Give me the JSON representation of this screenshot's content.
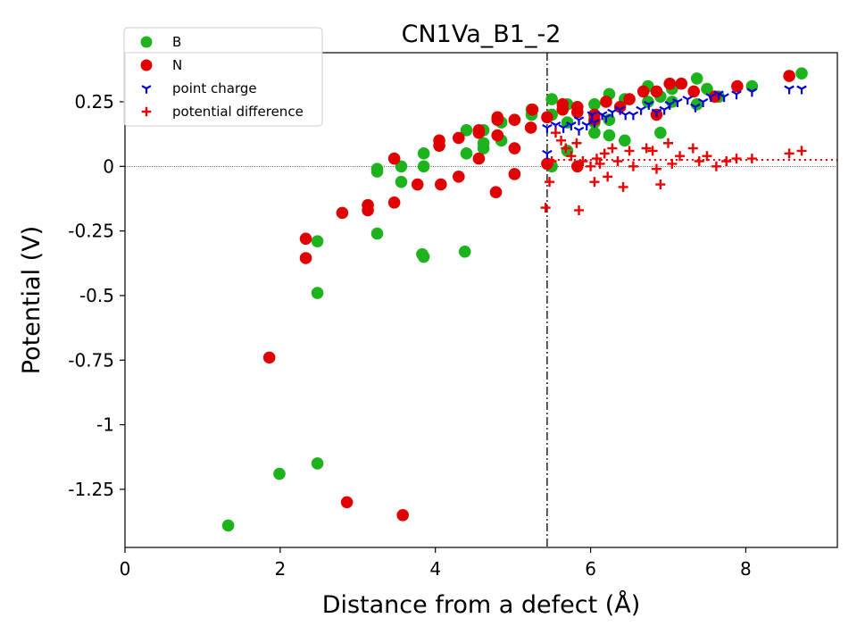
{
  "chart_data": {
    "type": "scatter",
    "title": "CN1Va_B1_-2",
    "xlabel": "Distance from a defect (Å)",
    "ylabel": "Potential (V)",
    "xlim": [
      0,
      9.18
    ],
    "ylim": [
      -1.475,
      0.44
    ],
    "x_ticks": [
      0,
      2,
      4,
      6,
      8
    ],
    "x_tick_labels": [
      "0",
      "2",
      "4",
      "6",
      "8"
    ],
    "y_ticks": [
      0.25,
      0,
      -0.25,
      -0.5,
      -0.75,
      -1,
      -1.25
    ],
    "y_tick_labels": [
      "0.25",
      "0",
      "-0.25",
      "-0.5",
      "-0.75",
      "-1",
      "-1.25"
    ],
    "grid": false,
    "legend_position": "top-left",
    "reference_lines": {
      "zero_line": 0,
      "vertical_line_x": 5.44,
      "average_line_y": 0.025,
      "average_line_x_from": 5.44
    },
    "series": [
      {
        "name": "B",
        "marker": "circle",
        "color": "#1db31d",
        "points": [
          [
            1.33,
            -1.39
          ],
          [
            1.99,
            -1.19
          ],
          [
            2.48,
            -1.15
          ],
          [
            2.48,
            -0.49
          ],
          [
            2.48,
            -0.29
          ],
          [
            3.25,
            -0.26
          ],
          [
            3.25,
            -0.02
          ],
          [
            3.25,
            -0.01
          ],
          [
            3.56,
            -0.06
          ],
          [
            3.56,
            0.0
          ],
          [
            3.83,
            -0.34
          ],
          [
            3.85,
            -0.35
          ],
          [
            3.85,
            0.0
          ],
          [
            3.85,
            0.05
          ],
          [
            4.38,
            -0.33
          ],
          [
            4.4,
            0.05
          ],
          [
            4.4,
            0.14
          ],
          [
            4.62,
            0.07
          ],
          [
            4.62,
            0.09
          ],
          [
            4.62,
            0.14
          ],
          [
            4.85,
            0.1
          ],
          [
            4.85,
            0.17
          ],
          [
            5.24,
            0.2
          ],
          [
            5.24,
            0.22
          ],
          [
            5.5,
            0.26
          ],
          [
            5.5,
            0.2
          ],
          [
            5.5,
            0.0
          ],
          [
            5.7,
            0.06
          ],
          [
            5.7,
            0.17
          ],
          [
            5.7,
            0.24
          ],
          [
            6.05,
            0.13
          ],
          [
            6.05,
            0.17
          ],
          [
            6.05,
            0.24
          ],
          [
            6.24,
            0.12
          ],
          [
            6.24,
            0.18
          ],
          [
            6.24,
            0.28
          ],
          [
            6.44,
            0.1
          ],
          [
            6.44,
            0.26
          ],
          [
            6.74,
            0.25
          ],
          [
            6.74,
            0.31
          ],
          [
            6.9,
            0.13
          ],
          [
            6.9,
            0.27
          ],
          [
            7.05,
            0.25
          ],
          [
            7.05,
            0.3
          ],
          [
            7.37,
            0.24
          ],
          [
            7.37,
            0.34
          ],
          [
            7.5,
            0.3
          ],
          [
            7.65,
            0.27
          ],
          [
            8.08,
            0.31
          ],
          [
            8.72,
            0.36
          ]
        ]
      },
      {
        "name": "N",
        "marker": "circle",
        "color": "#e00000",
        "points": [
          [
            1.86,
            -0.74
          ],
          [
            2.33,
            -0.28
          ],
          [
            2.33,
            -0.355
          ],
          [
            2.8,
            -0.18
          ],
          [
            2.86,
            -1.3
          ],
          [
            3.13,
            -0.15
          ],
          [
            3.13,
            -0.17
          ],
          [
            3.47,
            0.03
          ],
          [
            3.47,
            -0.14
          ],
          [
            3.58,
            -1.35
          ],
          [
            3.77,
            -0.07
          ],
          [
            4.05,
            0.1
          ],
          [
            4.05,
            0.08
          ],
          [
            4.07,
            -0.07
          ],
          [
            4.3,
            -0.04
          ],
          [
            4.3,
            0.11
          ],
          [
            4.56,
            0.14
          ],
          [
            4.56,
            0.13
          ],
          [
            4.56,
            0.03
          ],
          [
            4.78,
            -0.1
          ],
          [
            4.8,
            0.12
          ],
          [
            4.8,
            0.18
          ],
          [
            4.8,
            0.19
          ],
          [
            5.02,
            0.18
          ],
          [
            5.02,
            0.07
          ],
          [
            5.02,
            -0.03
          ],
          [
            5.23,
            0.15
          ],
          [
            5.25,
            0.22
          ],
          [
            5.44,
            0.19
          ],
          [
            5.44,
            0.01
          ],
          [
            5.64,
            0.24
          ],
          [
            5.64,
            0.22
          ],
          [
            5.83,
            0.23
          ],
          [
            5.83,
            0.21
          ],
          [
            5.83,
            0.0
          ],
          [
            6.05,
            0.2
          ],
          [
            6.05,
            0.18
          ],
          [
            6.2,
            0.25
          ],
          [
            6.38,
            0.23
          ],
          [
            6.5,
            0.26
          ],
          [
            6.68,
            0.29
          ],
          [
            6.85,
            0.2
          ],
          [
            6.85,
            0.29
          ],
          [
            7.02,
            0.32
          ],
          [
            7.17,
            0.32
          ],
          [
            7.33,
            0.29
          ],
          [
            7.6,
            0.27
          ],
          [
            7.89,
            0.31
          ],
          [
            8.56,
            0.35
          ]
        ]
      },
      {
        "name": "point charge",
        "marker": "tri-down",
        "color": "#0000dd",
        "points": [
          [
            5.44,
            0.15
          ],
          [
            5.44,
            0.05
          ],
          [
            5.55,
            0.16
          ],
          [
            5.65,
            0.15
          ],
          [
            5.75,
            0.16
          ],
          [
            5.85,
            0.14
          ],
          [
            5.85,
            0.18
          ],
          [
            5.95,
            0.16
          ],
          [
            6.02,
            0.2
          ],
          [
            6.05,
            0.17
          ],
          [
            6.15,
            0.2
          ],
          [
            6.2,
            0.19
          ],
          [
            6.28,
            0.21
          ],
          [
            6.38,
            0.22
          ],
          [
            6.45,
            0.2
          ],
          [
            6.55,
            0.2
          ],
          [
            6.65,
            0.22
          ],
          [
            6.75,
            0.24
          ],
          [
            6.85,
            0.21
          ],
          [
            6.95,
            0.22
          ],
          [
            7.02,
            0.24
          ],
          [
            7.12,
            0.25
          ],
          [
            7.25,
            0.26
          ],
          [
            7.35,
            0.23
          ],
          [
            7.45,
            0.25
          ],
          [
            7.55,
            0.27
          ],
          [
            7.65,
            0.28
          ],
          [
            7.72,
            0.27
          ],
          [
            7.88,
            0.28
          ],
          [
            8.08,
            0.29
          ],
          [
            8.56,
            0.3
          ],
          [
            8.72,
            0.3
          ]
        ]
      },
      {
        "name": "potential difference",
        "marker": "plus",
        "color": "#ee0000",
        "points": [
          [
            5.42,
            -0.16
          ],
          [
            5.47,
            -0.06
          ],
          [
            5.5,
            0.02
          ],
          [
            5.55,
            0.13
          ],
          [
            5.62,
            0.1
          ],
          [
            5.68,
            0.07
          ],
          [
            5.75,
            0.04
          ],
          [
            5.82,
            0.09
          ],
          [
            5.85,
            -0.17
          ],
          [
            5.9,
            0.02
          ],
          [
            6.0,
            0.0
          ],
          [
            6.05,
            -0.06
          ],
          [
            6.08,
            0.03
          ],
          [
            6.12,
            0.01
          ],
          [
            6.18,
            0.05
          ],
          [
            6.22,
            -0.04
          ],
          [
            6.28,
            0.07
          ],
          [
            6.35,
            0.02
          ],
          [
            6.42,
            -0.08
          ],
          [
            6.5,
            0.06
          ],
          [
            6.55,
            0.0
          ],
          [
            6.72,
            0.07
          ],
          [
            6.8,
            0.06
          ],
          [
            6.85,
            -0.01
          ],
          [
            6.9,
            -0.07
          ],
          [
            7.0,
            0.09
          ],
          [
            7.05,
            0.01
          ],
          [
            7.15,
            0.04
          ],
          [
            7.32,
            0.07
          ],
          [
            7.4,
            0.02
          ],
          [
            7.5,
            0.04
          ],
          [
            7.62,
            0.0
          ],
          [
            7.75,
            0.02
          ],
          [
            7.88,
            0.03
          ],
          [
            8.08,
            0.03
          ],
          [
            8.56,
            0.05
          ],
          [
            8.72,
            0.06
          ]
        ]
      }
    ]
  }
}
